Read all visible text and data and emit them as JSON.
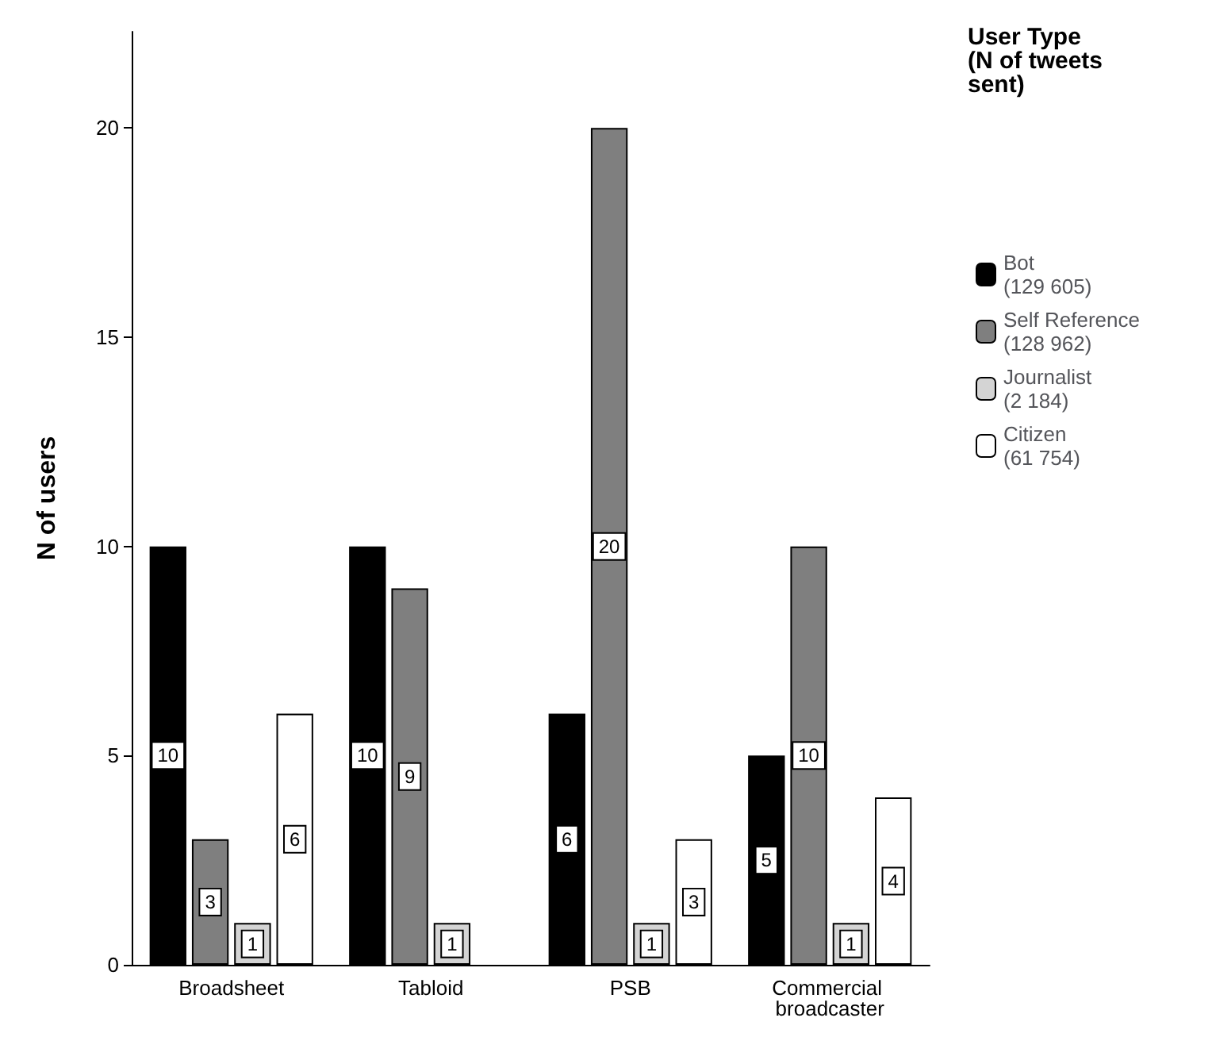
{
  "chart_data": {
    "type": "bar",
    "ylabel": "N of users",
    "legend_title": "User Type\n(N of tweets sent)",
    "categories": [
      "Broadsheet",
      "Tabloid",
      "PSB",
      "Commercial broadcaster"
    ],
    "series": [
      {
        "name": "Bot\n(129 605)",
        "color": "#000000",
        "values": [
          10,
          10,
          6,
          5
        ]
      },
      {
        "name": "Self Reference\n(128 962)",
        "color": "#7f7f7f",
        "values": [
          3,
          9,
          20,
          10
        ]
      },
      {
        "name": "Journalist\n(2 184)",
        "color": "#d4d4d4",
        "values": [
          1,
          1,
          1,
          1
        ]
      },
      {
        "name": "Citizen\n(61 754)",
        "color": "#ffffff",
        "values": [
          6,
          null,
          3,
          4
        ]
      }
    ],
    "ylim": [
      0,
      22.3
    ],
    "yticks": [
      0,
      5,
      10,
      15,
      20
    ],
    "grid": false,
    "legend": "top right",
    "data_labels": true
  }
}
